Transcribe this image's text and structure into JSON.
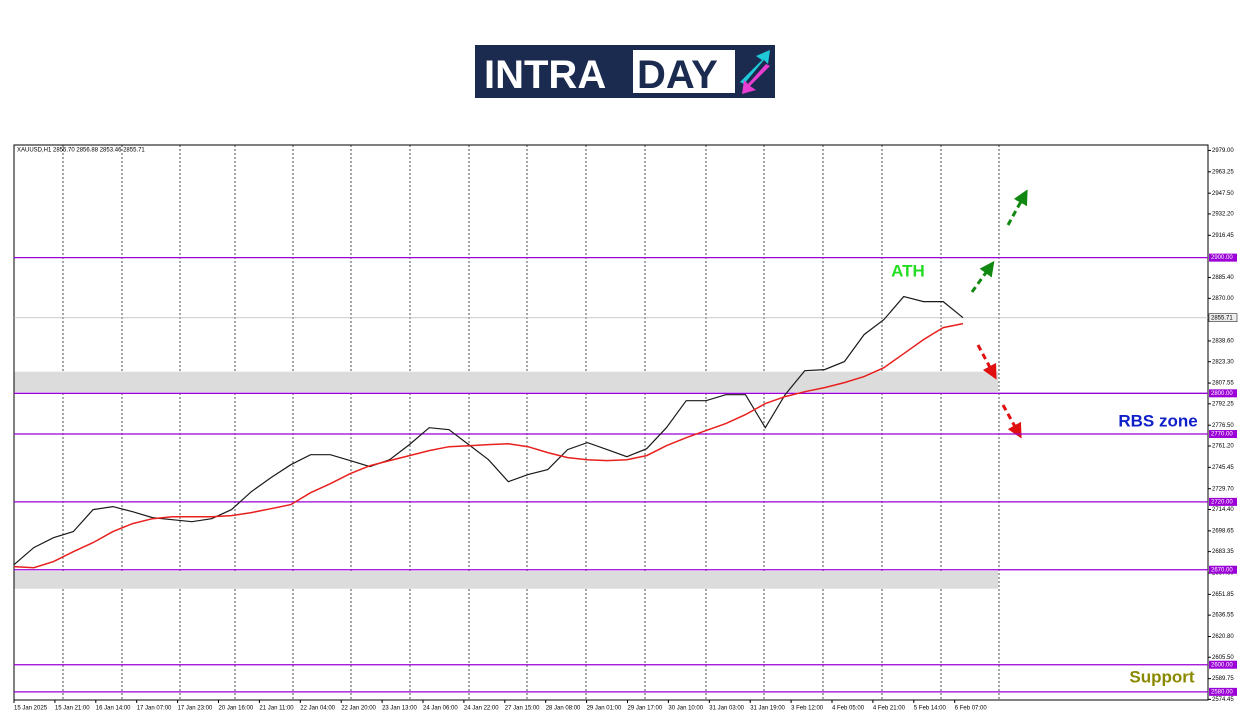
{
  "logo": {
    "left": "INTRA",
    "right": "DAY"
  },
  "chart_data": {
    "type": "line",
    "info": "XAUUSD,H1  2855.70 2856.88 2853.46 2855.71",
    "x_labels": [
      "15 Jan 2025",
      "15 Jan 21:00",
      "16 Jan 14:00",
      "17 Jan 07:00",
      "17 Jan 23:00",
      "20 Jan 16:00",
      "21 Jan 11:00",
      "22 Jan 04:00",
      "22 Jan 20:00",
      "23 Jan 13:00",
      "24 Jan 06:00",
      "24 Jan 22:00",
      "27 Jan 15:00",
      "28 Jan 08:00",
      "29 Jan 01:00",
      "29 Jan 17:00",
      "30 Jan 10:00",
      "31 Jan 03:00",
      "31 Jan 19:00",
      "3 Feb 12:00",
      "4 Feb 05:00",
      "4 Feb 21:00",
      "5 Feb 14:00",
      "6 Feb 07:00"
    ],
    "series": [
      {
        "color": "#1a1a1a",
        "values": [
          2673.7,
          2686.3,
          2693.6,
          2698.1,
          2714.3,
          2716.5,
          2712.8,
          2708.4,
          2706.9,
          2705.4,
          2707.6,
          2714.3,
          2727.5,
          2737.9,
          2747.4,
          2754.8,
          2754.8,
          2750.4,
          2746.0,
          2751.1,
          2762.2,
          2774.7,
          2773.2,
          2762.2,
          2751.1,
          2734.9,
          2740.1,
          2743.8,
          2758.5,
          2763.7,
          2758.5,
          2753.3,
          2759.2,
          2774.7,
          2794.6,
          2794.6,
          2799.0,
          2799.0,
          2774.7,
          2799.0,
          2816.7,
          2817.5,
          2823.4,
          2843.3,
          2854.3,
          2871.3,
          2867.6,
          2867.6,
          2855.71
        ]
      },
      {
        "color": "#e8201e",
        "values": [
          2672.3,
          2671.5,
          2676.0,
          2683.3,
          2690.0,
          2698.1,
          2704.0,
          2707.6,
          2709.1,
          2709.1,
          2709.1,
          2709.9,
          2712.1,
          2715.0,
          2718.0,
          2726.8,
          2733.4,
          2740.8,
          2746.7,
          2750.4,
          2754.1,
          2757.8,
          2760.7,
          2761.4,
          2762.2,
          2762.9,
          2760.7,
          2756.3,
          2752.6,
          2751.1,
          2750.4,
          2751.1,
          2754.1,
          2761.4,
          2767.3,
          2772.5,
          2777.7,
          2784.3,
          2792.4,
          2797.6,
          2801.2,
          2804.2,
          2807.9,
          2812.3,
          2818.9,
          2829.2,
          2839.6,
          2848.4,
          2851.4
        ]
      }
    ],
    "ylim": [
      2574,
      2983
    ],
    "yticks": [
      {
        "value": 2979,
        "label": "2979.00"
      },
      2963.25,
      {
        "value": 2947.5,
        "label": "2947.50"
      },
      {
        "value": 2932.2,
        "label": "2932.20"
      },
      2916.45,
      {
        "value": 2885.4,
        "label": "2885.40"
      },
      {
        "value": 2870,
        "label": "2870.00"
      },
      {
        "value": 2838.6,
        "label": "2838.60"
      },
      {
        "value": 2823.3,
        "label": "2823.30"
      },
      2807.55,
      2792.25,
      {
        "value": 2776.5,
        "label": "2776.50"
      },
      {
        "value": 2761.2,
        "label": "2761.20"
      },
      2745.45,
      {
        "value": 2729.7,
        "label": "2729.70"
      },
      {
        "value": 2714.4,
        "label": "2714.40"
      },
      2698.65,
      2683.35,
      {
        "value": 2667.6,
        "label": "2667.60"
      },
      2651.85,
      2636.55,
      {
        "value": 2620.8,
        "label": "2620.80"
      },
      {
        "value": 2605.5,
        "label": "2605.50"
      },
      2589.75,
      2574.45
    ],
    "levels_color": "#9b00d6",
    "levels": [
      {
        "value": 2900,
        "label": "2900.00"
      },
      {
        "value": 2800,
        "label": "2800.00"
      },
      {
        "value": 2770,
        "label": "2770.00"
      },
      {
        "value": 2720,
        "label": "2720.00"
      },
      {
        "value": 2670,
        "label": "2670.00"
      },
      {
        "value": 2600,
        "label": "2600.00"
      },
      {
        "value": 2580,
        "label": "2580.00"
      }
    ],
    "last_price": 2855.71,
    "zones": [
      {
        "from": 2801,
        "to": 2816
      },
      {
        "from": 2656,
        "to": 2669
      }
    ],
    "annotations": [
      {
        "text": "ATH",
        "color": "#22dd22"
      },
      {
        "text": "RBS zone",
        "color": "#1020c8"
      },
      {
        "text": "Support",
        "color": "#8a8a00"
      }
    ]
  }
}
